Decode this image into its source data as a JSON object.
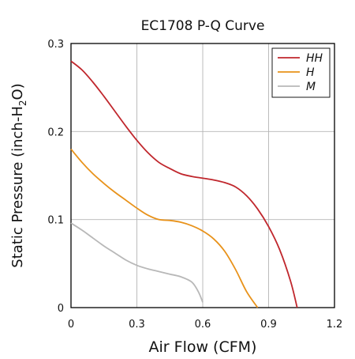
{
  "chart_data": {
    "type": "line",
    "title": "EC1708 P-Q Curve",
    "xlabel": "Air Flow (CFM)",
    "ylabel": {
      "prefix": "Static Pressure (inch-H",
      "subscript": "2",
      "suffix": "O)"
    },
    "xlim": [
      0,
      1.2
    ],
    "ylim": [
      0,
      0.3
    ],
    "xticks": [
      0,
      0.3,
      0.6,
      0.9,
      1.2
    ],
    "xtick_labels": [
      "0",
      "0.3",
      "0.6",
      "0.9",
      "1.2"
    ],
    "yticks": [
      0,
      0.1,
      0.2,
      0.3
    ],
    "ytick_labels": [
      "0",
      "0.1",
      "0.2",
      "0.3"
    ],
    "grid": true,
    "legend_position": "top-right",
    "series": [
      {
        "name": "HH",
        "color": "#c0272d",
        "x": [
          0,
          0.05,
          0.1,
          0.15,
          0.2,
          0.25,
          0.3,
          0.35,
          0.4,
          0.45,
          0.5,
          0.55,
          0.6,
          0.65,
          0.7,
          0.75,
          0.8,
          0.85,
          0.9,
          0.95,
          1.0,
          1.03
        ],
        "y": [
          0.28,
          0.27,
          0.256,
          0.24,
          0.223,
          0.206,
          0.19,
          0.176,
          0.165,
          0.158,
          0.152,
          0.149,
          0.147,
          0.145,
          0.142,
          0.137,
          0.127,
          0.112,
          0.092,
          0.066,
          0.03,
          0
        ]
      },
      {
        "name": "H",
        "color": "#e8921a",
        "x": [
          0,
          0.05,
          0.1,
          0.15,
          0.2,
          0.25,
          0.3,
          0.35,
          0.4,
          0.45,
          0.5,
          0.55,
          0.6,
          0.65,
          0.7,
          0.75,
          0.8,
          0.85
        ],
        "y": [
          0.18,
          0.165,
          0.152,
          0.141,
          0.131,
          0.122,
          0.113,
          0.105,
          0.1,
          0.099,
          0.097,
          0.093,
          0.087,
          0.078,
          0.064,
          0.043,
          0.018,
          0
        ]
      },
      {
        "name": "M",
        "color": "#b8b8b8",
        "x": [
          0,
          0.05,
          0.1,
          0.15,
          0.2,
          0.25,
          0.3,
          0.35,
          0.4,
          0.45,
          0.5,
          0.55,
          0.58,
          0.6
        ],
        "y": [
          0.096,
          0.088,
          0.079,
          0.07,
          0.062,
          0.054,
          0.048,
          0.044,
          0.041,
          0.038,
          0.035,
          0.029,
          0.018,
          0.006
        ]
      }
    ]
  }
}
